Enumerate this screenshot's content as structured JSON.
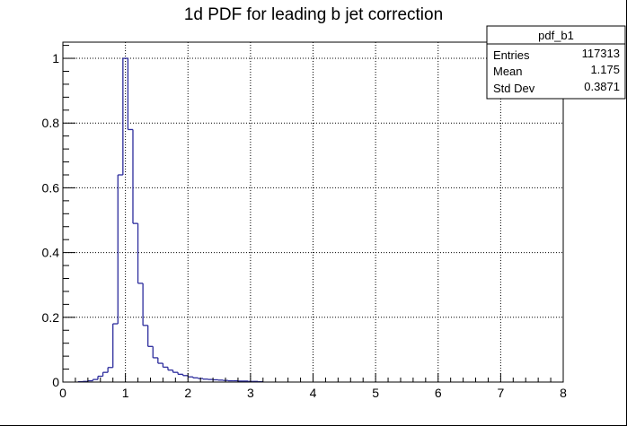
{
  "chart_data": {
    "type": "histogram",
    "title": "1d PDF for leading b jet correction",
    "xlabel": "",
    "ylabel": "",
    "xlim": [
      0,
      8
    ],
    "ylim": [
      0,
      1.05
    ],
    "grid": true,
    "x_ticks": [
      0,
      1,
      2,
      3,
      4,
      5,
      6,
      7,
      8
    ],
    "y_ticks": [
      0,
      0.2,
      0.4,
      0.6,
      0.8,
      1
    ],
    "x_tick_labels": [
      "0",
      "1",
      "2",
      "3",
      "4",
      "5",
      "6",
      "7",
      "8"
    ],
    "y_tick_labels": [
      "0",
      "0.2",
      "0.4",
      "0.6",
      "0.8",
      "1"
    ],
    "bin_width": 0.08,
    "series": [
      {
        "bin_edges": [
          0.24,
          0.32,
          0.4,
          0.48,
          0.56,
          0.64,
          0.72,
          0.8,
          0.88,
          0.96,
          1.04,
          1.12,
          1.2,
          1.28,
          1.36,
          1.44,
          1.52,
          1.6,
          1.68,
          1.76,
          1.84,
          1.92,
          2.0,
          2.08,
          2.16,
          2.24,
          2.32,
          2.4,
          2.48,
          2.56,
          2.64,
          2.72,
          2.8,
          2.88,
          2.96,
          3.04,
          3.12,
          3.2
        ],
        "values": [
          0.001,
          0.002,
          0.004,
          0.008,
          0.018,
          0.03,
          0.045,
          0.18,
          0.64,
          1.0,
          0.78,
          0.49,
          0.305,
          0.175,
          0.11,
          0.075,
          0.058,
          0.046,
          0.037,
          0.03,
          0.024,
          0.02,
          0.016,
          0.013,
          0.011,
          0.009,
          0.008,
          0.007,
          0.006,
          0.005,
          0.004,
          0.004,
          0.003,
          0.003,
          0.002,
          0.002,
          0.001
        ],
        "color": "#2b2b9c"
      }
    ],
    "stats_box": {
      "name": "pdf_b1",
      "rows": [
        {
          "label": "Entries",
          "value": "117313"
        },
        {
          "label": "Mean",
          "value": "1.175"
        },
        {
          "label": "Std Dev",
          "value": "0.3871"
        }
      ]
    }
  }
}
